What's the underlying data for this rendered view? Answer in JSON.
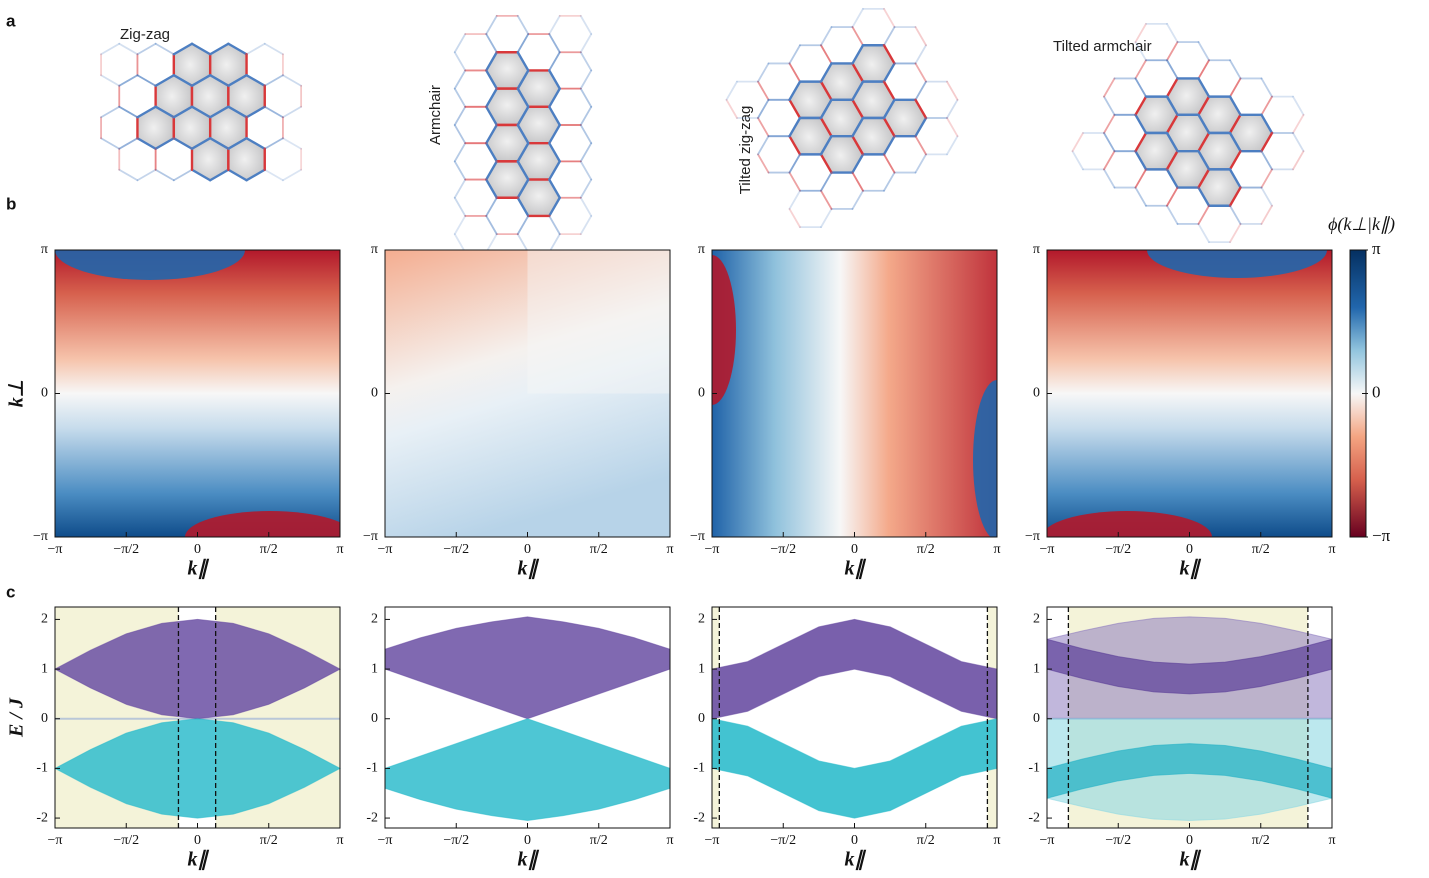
{
  "panel_labels": [
    "a",
    "b",
    "c"
  ],
  "lattices": [
    {
      "label": "Zig-zag"
    },
    {
      "label": "Armchair"
    },
    {
      "label": "Tilted zig-zag"
    },
    {
      "label": "Tilted armchair"
    }
  ],
  "chart_data": [
    {
      "type": "heatmap",
      "ylabel": "k⊥",
      "xlabel": "k∥",
      "xlim": [
        -3.1416,
        3.1416
      ],
      "ylim": [
        -3.1416,
        3.1416
      ],
      "xticks": [
        {
          "value": -3.1416,
          "label": "−π"
        },
        {
          "value": -1.5708,
          "label": "−π/2"
        },
        0,
        {
          "value": 1.5708,
          "label": "π/2"
        },
        {
          "value": 3.1416,
          "label": "π"
        }
      ],
      "yticks": [
        {
          "value": -3.1416,
          "label": "−π"
        },
        0,
        {
          "value": 3.1416,
          "label": "π"
        }
      ]
    },
    {
      "type": "heatmap",
      "xlabel": "k∥",
      "xlim": [
        -3.1416,
        3.1416
      ],
      "ylim": [
        -3.1416,
        3.1416
      ],
      "xticks": [
        {
          "value": -3.1416,
          "label": "−π"
        },
        {
          "value": -1.5708,
          "label": "−π/2"
        },
        0,
        {
          "value": 1.5708,
          "label": "π/2"
        },
        {
          "value": 3.1416,
          "label": "π"
        }
      ],
      "yticks": [
        {
          "value": -3.1416,
          "label": "−π"
        },
        0,
        {
          "value": 3.1416,
          "label": "π"
        }
      ]
    },
    {
      "type": "heatmap",
      "xlabel": "k∥",
      "xlim": [
        -3.1416,
        3.1416
      ],
      "ylim": [
        -3.1416,
        3.1416
      ],
      "xticks": [
        {
          "value": -3.1416,
          "label": "−π"
        },
        {
          "value": -1.5708,
          "label": "−π/2"
        },
        0,
        {
          "value": 1.5708,
          "label": "π/2"
        },
        {
          "value": 3.1416,
          "label": "π"
        }
      ],
      "yticks": [
        {
          "value": -3.1416,
          "label": "−π"
        },
        0,
        {
          "value": 3.1416,
          "label": "π"
        }
      ]
    },
    {
      "type": "heatmap",
      "xlabel": "k∥",
      "xlim": [
        -3.1416,
        3.1416
      ],
      "ylim": [
        -3.1416,
        3.1416
      ],
      "xticks": [
        {
          "value": -3.1416,
          "label": "−π"
        },
        {
          "value": -1.5708,
          "label": "−π/2"
        },
        0,
        {
          "value": 1.5708,
          "label": "π/2"
        },
        {
          "value": 3.1416,
          "label": "π"
        }
      ],
      "yticks": [
        {
          "value": -3.1416,
          "label": "−π"
        },
        0,
        {
          "value": 3.1416,
          "label": "π"
        }
      ],
      "colorbar": {
        "label": "ϕ(k⊥|k∥)",
        "lim": [
          -3.1416,
          3.1416
        ],
        "ticks": [
          {
            "value": -3.1416,
            "label": "−π"
          },
          0,
          {
            "value": 3.1416,
            "label": "π"
          }
        ]
      }
    },
    {
      "type": "band",
      "ylabel": "E / J",
      "xlabel": "k∥",
      "xlim": [
        -3.1416,
        3.1416
      ],
      "ylim": [
        -2.2,
        2.25
      ],
      "xticks": [
        {
          "value": -3.1416,
          "label": "−π"
        },
        {
          "value": -1.5708,
          "label": "−π/2"
        },
        0,
        {
          "value": 1.5708,
          "label": "π/2"
        },
        {
          "value": 3.1416,
          "label": "π"
        }
      ],
      "yticks": [
        -2,
        -1,
        0,
        1,
        2
      ],
      "shaded": [
        [
          -3.1416,
          -0.42
        ],
        [
          0.4,
          3.1416
        ]
      ],
      "dashed_x": [
        -0.42,
        0.4
      ],
      "zero_line": true,
      "x": [
        -3.1416,
        -2.3562,
        -1.5708,
        -0.7854,
        0,
        0.7854,
        1.5708,
        2.3562,
        3.1416
      ],
      "series": [
        {
          "color": "#6a4fa3",
          "opacity": 0.85,
          "lower": [
            1,
            0.62,
            0.29,
            0.08,
            0,
            0.08,
            0.29,
            0.62,
            1
          ],
          "upper": [
            1,
            1.38,
            1.71,
            1.92,
            2,
            1.92,
            1.71,
            1.38,
            1
          ]
        },
        {
          "color": "#2fbccc",
          "opacity": 0.85,
          "lower": [
            -1,
            -1.38,
            -1.71,
            -1.92,
            -2,
            -1.92,
            -1.71,
            -1.38,
            -1
          ],
          "upper": [
            -1,
            -0.62,
            -0.29,
            -0.08,
            0,
            -0.08,
            -0.29,
            -0.62,
            -1
          ]
        }
      ]
    },
    {
      "type": "band",
      "xlabel": "k∥",
      "xlim": [
        -3.1416,
        3.1416
      ],
      "ylim": [
        -2.2,
        2.25
      ],
      "xticks": [
        {
          "value": -3.1416,
          "label": "−π"
        },
        {
          "value": -1.5708,
          "label": "−π/2"
        },
        0,
        {
          "value": 1.5708,
          "label": "π/2"
        },
        {
          "value": 3.1416,
          "label": "π"
        }
      ],
      "yticks": [
        -2,
        -1,
        0,
        1,
        2
      ],
      "x": [
        -3.1416,
        -2.3562,
        -1.5708,
        -0.7854,
        0,
        0.7854,
        1.5708,
        2.3562,
        3.1416
      ],
      "series": [
        {
          "color": "#6a4fa3",
          "opacity": 0.85,
          "lower": [
            1,
            0.75,
            0.5,
            0.25,
            0,
            0.25,
            0.5,
            0.75,
            1
          ],
          "upper": [
            1.4,
            1.63,
            1.82,
            1.95,
            2.05,
            1.95,
            1.82,
            1.63,
            1.4
          ]
        },
        {
          "color": "#2fbccc",
          "opacity": 0.85,
          "lower": [
            -1.4,
            -1.63,
            -1.82,
            -1.95,
            -2.05,
            -1.95,
            -1.82,
            -1.63,
            -1.4
          ],
          "upper": [
            -1,
            -0.75,
            -0.5,
            -0.25,
            0,
            -0.25,
            -0.5,
            -0.75,
            -1
          ]
        }
      ]
    },
    {
      "type": "band",
      "xlabel": "k∥",
      "xlim": [
        -3.1416,
        3.1416
      ],
      "ylim": [
        -2.2,
        2.25
      ],
      "xticks": [
        {
          "value": -3.1416,
          "label": "−π"
        },
        {
          "value": -1.5708,
          "label": "−π/2"
        },
        0,
        {
          "value": 1.5708,
          "label": "π/2"
        },
        {
          "value": 3.1416,
          "label": "π"
        }
      ],
      "yticks": [
        -2,
        -1,
        0,
        1,
        2
      ],
      "shaded": [
        [
          -3.1416,
          -2.98
        ],
        [
          2.93,
          3.1416
        ]
      ],
      "dashed_x": [
        -2.98,
        2.93
      ],
      "x": [
        -3.1416,
        -2.3562,
        -1.5708,
        -0.7854,
        0,
        0.7854,
        1.5708,
        2.3562,
        3.1416
      ],
      "series": [
        {
          "color": "#6a4fa3",
          "opacity": 0.9,
          "lower": [
            0,
            0.15,
            0.5,
            0.85,
            1,
            0.85,
            0.5,
            0.15,
            0
          ],
          "upper": [
            1,
            1.15,
            1.5,
            1.85,
            2,
            1.85,
            1.5,
            1.15,
            1
          ]
        },
        {
          "color": "#2fbccc",
          "opacity": 0.9,
          "lower": [
            -1,
            -1.15,
            -1.5,
            -1.85,
            -2,
            -1.85,
            -1.5,
            -1.15,
            -1
          ],
          "upper": [
            0,
            -0.15,
            -0.5,
            -0.85,
            -1,
            -0.85,
            -0.5,
            -0.15,
            0
          ]
        }
      ]
    },
    {
      "type": "band",
      "xlabel": "k∥",
      "xlim": [
        -3.1416,
        3.1416
      ],
      "ylim": [
        -2.2,
        2.25
      ],
      "xticks": [
        {
          "value": -3.1416,
          "label": "−π"
        },
        {
          "value": -1.5708,
          "label": "−π/2"
        },
        0,
        {
          "value": 1.5708,
          "label": "π/2"
        },
        {
          "value": 3.1416,
          "label": "π"
        }
      ],
      "yticks": [
        -2,
        -1,
        0,
        1,
        2
      ],
      "shaded": [
        [
          -2.67,
          2.61
        ]
      ],
      "dashed_x": [
        -2.67,
        2.61
      ],
      "zero_line": true,
      "x": [
        -3.1416,
        -2.3562,
        -1.5708,
        -0.7854,
        0,
        0.7854,
        1.5708,
        2.3562,
        3.1416
      ],
      "series": [
        {
          "color": "#8e7cc0",
          "opacity": 0.55,
          "lower": [
            0,
            0,
            0,
            0,
            0,
            0,
            0,
            0,
            0
          ],
          "upper": [
            1.6,
            1.77,
            1.92,
            2.02,
            2.05,
            2.02,
            1.92,
            1.77,
            1.6
          ]
        },
        {
          "color": "#5b3f98",
          "opacity": 0.7,
          "lower": [
            1,
            0.81,
            0.65,
            0.54,
            0.5,
            0.54,
            0.65,
            0.81,
            1
          ],
          "upper": [
            1.6,
            1.41,
            1.25,
            1.14,
            1.1,
            1.14,
            1.25,
            1.41,
            1.6
          ]
        },
        {
          "color": "#8fd8e2",
          "opacity": 0.6,
          "lower": [
            -1.6,
            -1.77,
            -1.92,
            -2.02,
            -2.05,
            -2.02,
            -1.92,
            -1.77,
            -1.6
          ],
          "upper": [
            0,
            0,
            0,
            0,
            0,
            0,
            0,
            0,
            0
          ]
        },
        {
          "color": "#28b3c6",
          "opacity": 0.75,
          "lower": [
            -1.6,
            -1.41,
            -1.25,
            -1.14,
            -1.1,
            -1.14,
            -1.25,
            -1.41,
            -1.6
          ],
          "upper": [
            -1,
            -0.81,
            -0.65,
            -0.54,
            -0.5,
            -0.54,
            -0.65,
            -0.81,
            -1
          ]
        }
      ]
    }
  ]
}
